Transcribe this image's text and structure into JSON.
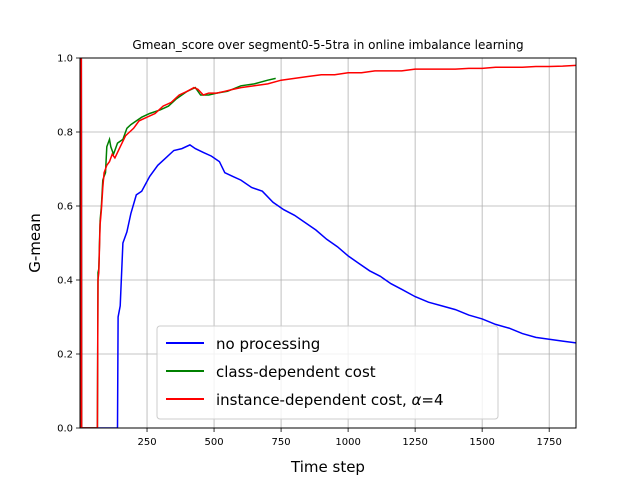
{
  "chart_data": {
    "type": "line",
    "title": "Gmean_score over segment0-5-5tra in online imbalance learning",
    "xlabel": "Time step",
    "ylabel": "G-mean",
    "xlim": [
      0,
      1850
    ],
    "ylim": [
      0,
      1.0
    ],
    "xticks": [
      250,
      500,
      750,
      1000,
      1250,
      1500,
      1750
    ],
    "yticks": [
      0.0,
      0.2,
      0.4,
      0.6,
      0.8,
      1.0
    ],
    "xtick_labels": [
      "250",
      "500",
      "750",
      "1000",
      "1250",
      "1500",
      "1750"
    ],
    "ytick_labels": [
      "0.0",
      "0.2",
      "0.4",
      "0.6",
      "0.8",
      "1.0"
    ],
    "grid": true,
    "legend_position": "lower-center",
    "series": [
      {
        "name": "no processing",
        "color": "#0000ff",
        "points": [
          [
            0,
            0
          ],
          [
            1,
            1.0
          ],
          [
            5,
            1.0
          ],
          [
            6,
            0
          ],
          [
            140,
            0
          ],
          [
            142,
            0.3
          ],
          [
            150,
            0.33
          ],
          [
            160,
            0.5
          ],
          [
            175,
            0.53
          ],
          [
            190,
            0.58
          ],
          [
            210,
            0.63
          ],
          [
            230,
            0.64
          ],
          [
            260,
            0.68
          ],
          [
            290,
            0.71
          ],
          [
            320,
            0.73
          ],
          [
            350,
            0.75
          ],
          [
            380,
            0.755
          ],
          [
            410,
            0.765
          ],
          [
            430,
            0.755
          ],
          [
            460,
            0.745
          ],
          [
            490,
            0.735
          ],
          [
            520,
            0.72
          ],
          [
            540,
            0.69
          ],
          [
            570,
            0.68
          ],
          [
            600,
            0.67
          ],
          [
            640,
            0.65
          ],
          [
            680,
            0.64
          ],
          [
            720,
            0.61
          ],
          [
            760,
            0.59
          ],
          [
            800,
            0.575
          ],
          [
            840,
            0.555
          ],
          [
            880,
            0.535
          ],
          [
            920,
            0.51
          ],
          [
            960,
            0.49
          ],
          [
            1000,
            0.465
          ],
          [
            1040,
            0.445
          ],
          [
            1080,
            0.425
          ],
          [
            1120,
            0.41
          ],
          [
            1160,
            0.39
          ],
          [
            1200,
            0.375
          ],
          [
            1250,
            0.355
          ],
          [
            1300,
            0.34
          ],
          [
            1350,
            0.33
          ],
          [
            1400,
            0.32
          ],
          [
            1450,
            0.305
          ],
          [
            1500,
            0.295
          ],
          [
            1550,
            0.28
          ],
          [
            1600,
            0.27
          ],
          [
            1650,
            0.255
          ],
          [
            1700,
            0.245
          ],
          [
            1750,
            0.24
          ],
          [
            1800,
            0.235
          ],
          [
            1850,
            0.23
          ]
        ]
      },
      {
        "name": "class-dependent cost",
        "color": "#008000",
        "points": [
          [
            0,
            0
          ],
          [
            1,
            1.0
          ],
          [
            5,
            1.0
          ],
          [
            6,
            0
          ],
          [
            65,
            0
          ],
          [
            67,
            0.42
          ],
          [
            70,
            0.43
          ],
          [
            75,
            0.56
          ],
          [
            80,
            0.6
          ],
          [
            85,
            0.67
          ],
          [
            90,
            0.68
          ],
          [
            95,
            0.69
          ],
          [
            100,
            0.76
          ],
          [
            110,
            0.78
          ],
          [
            115,
            0.76
          ],
          [
            125,
            0.74
          ],
          [
            140,
            0.77
          ],
          [
            160,
            0.78
          ],
          [
            175,
            0.81
          ],
          [
            190,
            0.82
          ],
          [
            210,
            0.83
          ],
          [
            230,
            0.84
          ],
          [
            260,
            0.85
          ],
          [
            300,
            0.86
          ],
          [
            330,
            0.87
          ],
          [
            360,
            0.89
          ],
          [
            400,
            0.91
          ],
          [
            430,
            0.92
          ],
          [
            450,
            0.9
          ],
          [
            480,
            0.9
          ],
          [
            510,
            0.905
          ],
          [
            550,
            0.91
          ],
          [
            600,
            0.925
          ],
          [
            650,
            0.93
          ],
          [
            700,
            0.94
          ],
          [
            730,
            0.945
          ]
        ]
      },
      {
        "name": "instance-dependent cost, $\\alpha$=4",
        "color": "#ff0000",
        "points": [
          [
            0,
            0
          ],
          [
            1,
            1.0
          ],
          [
            5,
            1.0
          ],
          [
            6,
            0
          ],
          [
            65,
            0
          ],
          [
            67,
            0.4
          ],
          [
            70,
            0.42
          ],
          [
            75,
            0.55
          ],
          [
            80,
            0.59
          ],
          [
            85,
            0.65
          ],
          [
            90,
            0.69
          ],
          [
            95,
            0.7
          ],
          [
            100,
            0.71
          ],
          [
            110,
            0.72
          ],
          [
            120,
            0.74
          ],
          [
            130,
            0.73
          ],
          [
            150,
            0.76
          ],
          [
            170,
            0.79
          ],
          [
            185,
            0.8
          ],
          [
            200,
            0.81
          ],
          [
            220,
            0.83
          ],
          [
            250,
            0.84
          ],
          [
            280,
            0.85
          ],
          [
            310,
            0.87
          ],
          [
            340,
            0.88
          ],
          [
            370,
            0.9
          ],
          [
            400,
            0.91
          ],
          [
            425,
            0.92
          ],
          [
            440,
            0.915
          ],
          [
            460,
            0.9
          ],
          [
            480,
            0.905
          ],
          [
            510,
            0.905
          ],
          [
            540,
            0.91
          ],
          [
            570,
            0.915
          ],
          [
            600,
            0.92
          ],
          [
            650,
            0.925
          ],
          [
            700,
            0.93
          ],
          [
            750,
            0.94
          ],
          [
            800,
            0.945
          ],
          [
            850,
            0.95
          ],
          [
            900,
            0.955
          ],
          [
            950,
            0.955
          ],
          [
            1000,
            0.96
          ],
          [
            1050,
            0.96
          ],
          [
            1100,
            0.965
          ],
          [
            1150,
            0.965
          ],
          [
            1200,
            0.965
          ],
          [
            1250,
            0.97
          ],
          [
            1300,
            0.97
          ],
          [
            1350,
            0.97
          ],
          [
            1400,
            0.97
          ],
          [
            1450,
            0.972
          ],
          [
            1500,
            0.972
          ],
          [
            1550,
            0.975
          ],
          [
            1600,
            0.975
          ],
          [
            1650,
            0.975
          ],
          [
            1700,
            0.977
          ],
          [
            1750,
            0.977
          ],
          [
            1800,
            0.978
          ],
          [
            1850,
            0.98
          ]
        ]
      }
    ],
    "legend_entries": [
      {
        "label": "no processing",
        "color": "#0000ff"
      },
      {
        "label": "class-dependent cost",
        "color": "#008000"
      },
      {
        "label_prefix": "instance-dependent cost, ",
        "label_symbol": "α",
        "label_suffix": "=4",
        "color": "#ff0000"
      }
    ]
  }
}
